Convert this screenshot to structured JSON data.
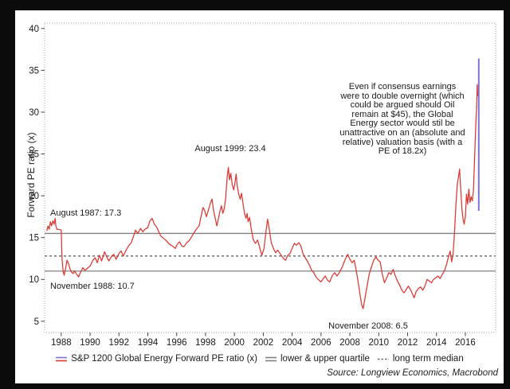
{
  "window": {
    "frame_color": "#0b0b0b",
    "panel_color": "#ffffff"
  },
  "chart_data": {
    "type": "line",
    "title": "",
    "xlabel": "",
    "ylabel": "Forward PE ratio (x)",
    "source": "Source: Longview Economics, Macrobond",
    "x_domain": [
      1986.85,
      2018.1
    ],
    "y_domain": [
      3.65,
      40.65
    ],
    "y_ticks": [
      5,
      10,
      15,
      20,
      25,
      30,
      35,
      40
    ],
    "x_ticks": [
      1988,
      1990,
      1992,
      1994,
      1996,
      1998,
      2000,
      2002,
      2004,
      2006,
      2008,
      2010,
      2012,
      2014,
      2016
    ],
    "grid": false,
    "plot_border": "dotted",
    "colors": {
      "series_red": "#DC3732",
      "hypothetical_purple": "#7B74D2",
      "quartile_gray": "#808080",
      "median_gray": "#666666",
      "border_gray": "#a0a0a0",
      "tick_gray": "#444444"
    },
    "reference_lines": {
      "upper_quartile": 15.5,
      "lower_quartile": 11.0,
      "long_term_median": 12.8
    },
    "hypothetical_pe_line": {
      "x": 2016.93,
      "from": 18.2,
      "to": 36.4
    },
    "legend": {
      "position": "bottom-center",
      "items": [
        {
          "label": "S&P 1200 Global Energy Forward PE ratio (x)",
          "symbol": "dual-line-blue-red"
        },
        {
          "label": "lower & upper quartile",
          "symbol": "dual-line-gray"
        },
        {
          "label": "long term median",
          "symbol": "dashed-line-gray"
        }
      ]
    },
    "annotations": [
      {
        "text": "August 1987: 17.3",
        "x": 1987.6,
        "y": 17.3
      },
      {
        "text": "November 1988: 10.7",
        "x": 1988.9,
        "y": 10.7
      },
      {
        "text": "August 1999: 23.4",
        "x": 1999.6,
        "y": 23.4
      },
      {
        "text": "November 2008: 6.5",
        "x": 2008.9,
        "y": 6.5
      },
      {
        "text": "Even if consensus earnings\nwere to double overnight (which\ncould be argued should Oil\nremain at $45), the Global\nEnergy sector would stil be\nunattractive on an (absolute and\nrelative) valuation basis (with a\nPE of 18.2x)"
      }
    ],
    "series": [
      {
        "name": "S&P 1200 Global Energy Forward PE ratio (x)",
        "points": [
          [
            1987.0,
            15.8
          ],
          [
            1987.08,
            16.4
          ],
          [
            1987.17,
            16.0
          ],
          [
            1987.25,
            16.9
          ],
          [
            1987.33,
            16.4
          ],
          [
            1987.42,
            17.0
          ],
          [
            1987.5,
            16.6
          ],
          [
            1987.58,
            17.3
          ],
          [
            1987.63,
            16.4
          ],
          [
            1987.7,
            16.0
          ],
          [
            1987.83,
            16.0
          ],
          [
            1988.0,
            15.9
          ],
          [
            1988.06,
            12.4
          ],
          [
            1988.13,
            11.0
          ],
          [
            1988.2,
            10.5
          ],
          [
            1988.3,
            11.3
          ],
          [
            1988.4,
            12.3
          ],
          [
            1988.5,
            11.9
          ],
          [
            1988.6,
            11.3
          ],
          [
            1988.7,
            10.9
          ],
          [
            1988.83,
            10.7
          ],
          [
            1988.92,
            11.0
          ],
          [
            1989.0,
            10.8
          ],
          [
            1989.2,
            10.3
          ],
          [
            1989.35,
            10.9
          ],
          [
            1989.5,
            11.4
          ],
          [
            1989.65,
            11.1
          ],
          [
            1989.8,
            11.3
          ],
          [
            1990.0,
            11.6
          ],
          [
            1990.2,
            12.3
          ],
          [
            1990.35,
            12.6
          ],
          [
            1990.5,
            12.0
          ],
          [
            1990.65,
            12.9
          ],
          [
            1990.8,
            12.2
          ],
          [
            1991.0,
            13.3
          ],
          [
            1991.15,
            12.7
          ],
          [
            1991.3,
            12.2
          ],
          [
            1991.5,
            12.8
          ],
          [
            1991.65,
            13.0
          ],
          [
            1991.8,
            12.4
          ],
          [
            1992.0,
            13.1
          ],
          [
            1992.15,
            13.4
          ],
          [
            1992.3,
            12.8
          ],
          [
            1992.5,
            13.5
          ],
          [
            1992.7,
            14.1
          ],
          [
            1992.85,
            14.4
          ],
          [
            1993.0,
            15.1
          ],
          [
            1993.15,
            15.9
          ],
          [
            1993.3,
            15.5
          ],
          [
            1993.5,
            16.1
          ],
          [
            1993.65,
            15.7
          ],
          [
            1993.8,
            16.0
          ],
          [
            1994.0,
            16.2
          ],
          [
            1994.15,
            17.0
          ],
          [
            1994.3,
            17.3
          ],
          [
            1994.45,
            16.6
          ],
          [
            1994.6,
            16.3
          ],
          [
            1994.75,
            15.7
          ],
          [
            1994.9,
            15.2
          ],
          [
            1995.1,
            14.9
          ],
          [
            1995.3,
            14.6
          ],
          [
            1995.5,
            14.2
          ],
          [
            1995.7,
            14.0
          ],
          [
            1995.9,
            13.7
          ],
          [
            1996.05,
            14.2
          ],
          [
            1996.2,
            14.5
          ],
          [
            1996.35,
            14.0
          ],
          [
            1996.5,
            13.9
          ],
          [
            1996.7,
            14.4
          ],
          [
            1996.85,
            14.6
          ],
          [
            1997.0,
            15.0
          ],
          [
            1997.2,
            15.6
          ],
          [
            1997.4,
            16.1
          ],
          [
            1997.55,
            16.4
          ],
          [
            1997.7,
            17.6
          ],
          [
            1997.83,
            18.6
          ],
          [
            1997.95,
            18.2
          ],
          [
            1998.05,
            17.5
          ],
          [
            1998.2,
            18.3
          ],
          [
            1998.35,
            19.2
          ],
          [
            1998.45,
            19.6
          ],
          [
            1998.55,
            18.3
          ],
          [
            1998.65,
            17.5
          ],
          [
            1998.78,
            16.4
          ],
          [
            1998.9,
            17.3
          ],
          [
            1999.0,
            18.2
          ],
          [
            1999.1,
            18.8
          ],
          [
            1999.2,
            17.9
          ],
          [
            1999.3,
            18.5
          ],
          [
            1999.4,
            19.8
          ],
          [
            1999.5,
            22.3
          ],
          [
            1999.58,
            23.4
          ],
          [
            1999.66,
            21.9
          ],
          [
            1999.75,
            22.7
          ],
          [
            1999.85,
            21.3
          ],
          [
            1999.95,
            20.7
          ],
          [
            2000.05,
            21.7
          ],
          [
            2000.12,
            22.6
          ],
          [
            2000.2,
            21.1
          ],
          [
            2000.3,
            20.2
          ],
          [
            2000.4,
            19.6
          ],
          [
            2000.5,
            20.3
          ],
          [
            2000.6,
            19.0
          ],
          [
            2000.7,
            17.9
          ],
          [
            2000.8,
            17.3
          ],
          [
            2000.88,
            17.9
          ],
          [
            2000.95,
            16.9
          ],
          [
            2001.05,
            17.4
          ],
          [
            2001.15,
            16.2
          ],
          [
            2001.3,
            14.8
          ],
          [
            2001.45,
            14.3
          ],
          [
            2001.6,
            14.7
          ],
          [
            2001.75,
            13.8
          ],
          [
            2001.9,
            12.9
          ],
          [
            2002.05,
            13.7
          ],
          [
            2002.2,
            15.9
          ],
          [
            2002.3,
            17.2
          ],
          [
            2002.4,
            16.2
          ],
          [
            2002.55,
            14.4
          ],
          [
            2002.7,
            13.7
          ],
          [
            2002.85,
            13.2
          ],
          [
            2003.0,
            13.5
          ],
          [
            2003.2,
            13.0
          ],
          [
            2003.4,
            12.5
          ],
          [
            2003.55,
            12.3
          ],
          [
            2003.7,
            12.9
          ],
          [
            2003.85,
            13.1
          ],
          [
            2004.0,
            13.7
          ],
          [
            2004.15,
            14.3
          ],
          [
            2004.3,
            14.1
          ],
          [
            2004.45,
            14.4
          ],
          [
            2004.6,
            14.0
          ],
          [
            2004.75,
            13.1
          ],
          [
            2004.9,
            12.6
          ],
          [
            2005.05,
            12.2
          ],
          [
            2005.2,
            11.7
          ],
          [
            2005.35,
            11.1
          ],
          [
            2005.5,
            10.8
          ],
          [
            2005.65,
            10.3
          ],
          [
            2005.8,
            10.0
          ],
          [
            2006.0,
            9.7
          ],
          [
            2006.15,
            10.1
          ],
          [
            2006.3,
            10.4
          ],
          [
            2006.45,
            9.9
          ],
          [
            2006.6,
            9.7
          ],
          [
            2006.8,
            10.5
          ],
          [
            2006.95,
            10.8
          ],
          [
            2007.1,
            10.4
          ],
          [
            2007.3,
            10.9
          ],
          [
            2007.5,
            11.6
          ],
          [
            2007.65,
            12.3
          ],
          [
            2007.85,
            13.0
          ],
          [
            2008.0,
            12.4
          ],
          [
            2008.15,
            12.0
          ],
          [
            2008.3,
            12.3
          ],
          [
            2008.45,
            11.0
          ],
          [
            2008.6,
            9.4
          ],
          [
            2008.72,
            8.0
          ],
          [
            2008.83,
            6.9
          ],
          [
            2008.92,
            6.5
          ],
          [
            2009.05,
            7.8
          ],
          [
            2009.2,
            9.3
          ],
          [
            2009.35,
            10.7
          ],
          [
            2009.5,
            11.5
          ],
          [
            2009.65,
            12.3
          ],
          [
            2009.8,
            12.7
          ],
          [
            2009.95,
            12.3
          ],
          [
            2010.1,
            12.1
          ],
          [
            2010.25,
            10.6
          ],
          [
            2010.4,
            9.6
          ],
          [
            2010.55,
            10.2
          ],
          [
            2010.7,
            10.8
          ],
          [
            2010.85,
            10.6
          ],
          [
            2011.0,
            11.2
          ],
          [
            2011.15,
            10.4
          ],
          [
            2011.3,
            9.8
          ],
          [
            2011.45,
            9.3
          ],
          [
            2011.6,
            8.7
          ],
          [
            2011.75,
            8.4
          ],
          [
            2011.9,
            8.8
          ],
          [
            2012.05,
            9.2
          ],
          [
            2012.2,
            8.8
          ],
          [
            2012.35,
            8.2
          ],
          [
            2012.45,
            7.8
          ],
          [
            2012.6,
            8.6
          ],
          [
            2012.75,
            8.9
          ],
          [
            2012.9,
            9.1
          ],
          [
            2013.05,
            8.7
          ],
          [
            2013.2,
            9.2
          ],
          [
            2013.35,
            10.0
          ],
          [
            2013.5,
            9.8
          ],
          [
            2013.65,
            9.6
          ],
          [
            2013.8,
            10.0
          ],
          [
            2013.95,
            10.2
          ],
          [
            2014.1,
            10.4
          ],
          [
            2014.25,
            10.1
          ],
          [
            2014.4,
            10.6
          ],
          [
            2014.55,
            11.0
          ],
          [
            2014.7,
            11.8
          ],
          [
            2014.85,
            12.8
          ],
          [
            2014.95,
            13.4
          ],
          [
            2015.05,
            12.1
          ],
          [
            2015.15,
            13.1
          ],
          [
            2015.25,
            15.7
          ],
          [
            2015.35,
            19.0
          ],
          [
            2015.45,
            21.5
          ],
          [
            2015.52,
            22.2
          ],
          [
            2015.6,
            23.2
          ],
          [
            2015.68,
            20.8
          ],
          [
            2015.76,
            18.5
          ],
          [
            2015.84,
            17.2
          ],
          [
            2015.92,
            16.6
          ],
          [
            2016.0,
            17.5
          ],
          [
            2016.08,
            20.2
          ],
          [
            2016.16,
            19.0
          ],
          [
            2016.24,
            20.8
          ],
          [
            2016.32,
            19.2
          ],
          [
            2016.4,
            19.9
          ],
          [
            2016.48,
            19.4
          ],
          [
            2016.56,
            20.6
          ],
          [
            2016.64,
            24.6
          ],
          [
            2016.72,
            28.3
          ],
          [
            2016.78,
            30.5
          ],
          [
            2016.82,
            33.3
          ],
          [
            2016.86,
            31.9
          ]
        ]
      }
    ]
  }
}
